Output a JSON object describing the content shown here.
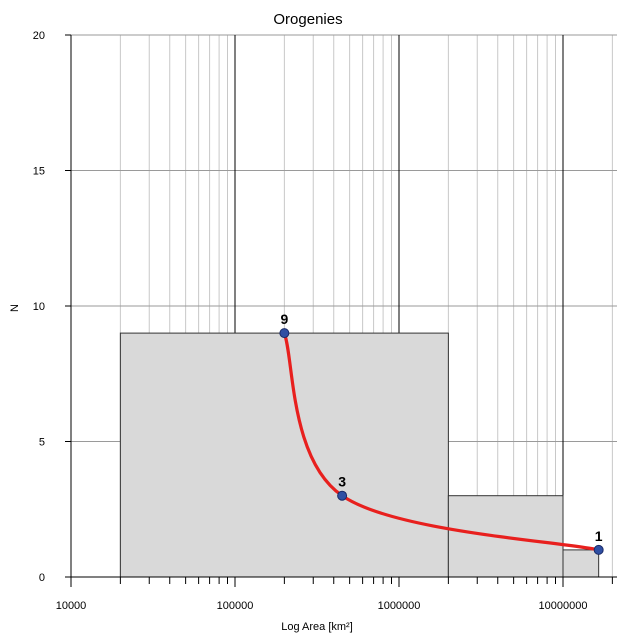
{
  "chart_data": {
    "type": "bar",
    "title": "Orogenies",
    "xlabel": "Log Area [km²]",
    "ylabel": "N",
    "x_scale": "log",
    "xlim": [
      10000,
      20000000
    ],
    "ylim": [
      0,
      20
    ],
    "grid": true,
    "x_ticks": [
      "10000",
      "100000",
      "1000000",
      "10000000"
    ],
    "y_ticks": [
      "0",
      "5",
      "10",
      "15",
      "20"
    ],
    "bars": [
      {
        "x_start": 20000,
        "x_end": 2000000,
        "value": 9
      },
      {
        "x_start": 2000000,
        "x_end": 10000000,
        "value": 3
      },
      {
        "x_start": 10000000,
        "x_end": 16500000,
        "value": 1
      }
    ],
    "series": [
      {
        "points": [
          {
            "x": 200000,
            "y": 9,
            "label": "9"
          },
          {
            "x": 450000,
            "y": 3,
            "label": "3"
          },
          {
            "x": 16500000,
            "y": 1,
            "label": "1"
          }
        ]
      }
    ],
    "colors": {
      "bar_fill": "#d9d9d9",
      "bar_stroke": "#333333",
      "curve": "#e8201e",
      "marker": "#2f4fa3",
      "grid_major": "#000000",
      "grid_minor": "#c8c8c8"
    }
  }
}
